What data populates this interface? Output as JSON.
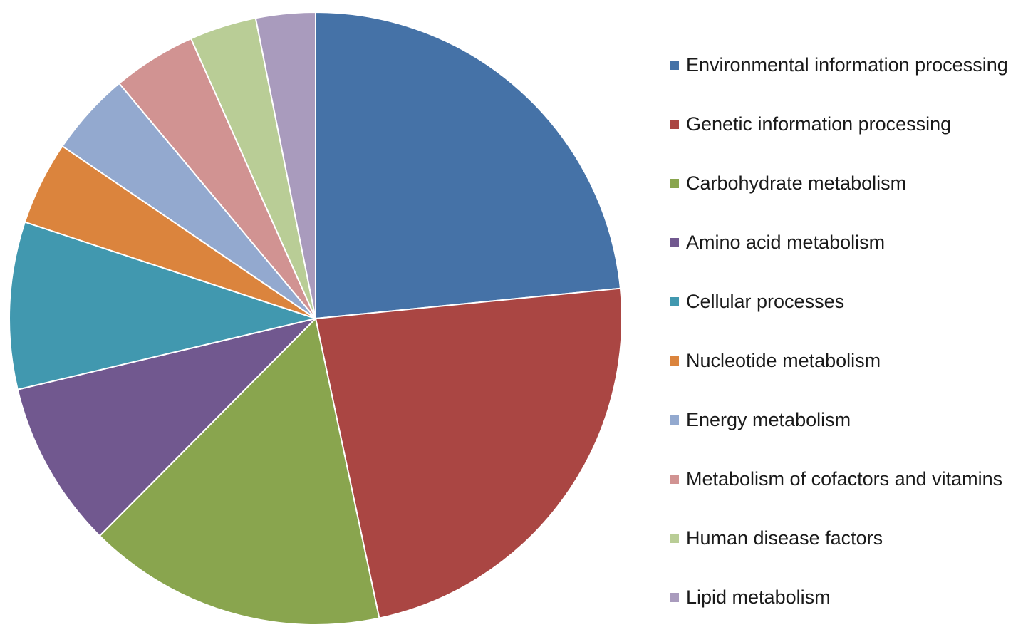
{
  "chart_data": {
    "type": "pie",
    "title": "",
    "legend_position": "right",
    "start_angle_deg": 0,
    "direction": "clockwise",
    "categories": [
      "Environmental information processing",
      "Genetic information processing",
      "Carbohydrate metabolism",
      "Amino acid metabolism",
      "Cellular processes",
      "Nucleotide metabolism",
      "Energy metabolism",
      "Metabolism of cofactors and vitamins",
      "Human disease factors",
      "Lipid metabolism"
    ],
    "values": [
      23.9,
      23.7,
      16.1,
      9.0,
      9.0,
      4.5,
      4.5,
      4.5,
      3.6,
      3.2
    ],
    "colors": [
      "#4572A7",
      "#AA4643",
      "#89A54E",
      "#71588F",
      "#4198AF",
      "#DB843D",
      "#93A9CF",
      "#D19392",
      "#B9CD96",
      "#A99BBD"
    ]
  }
}
